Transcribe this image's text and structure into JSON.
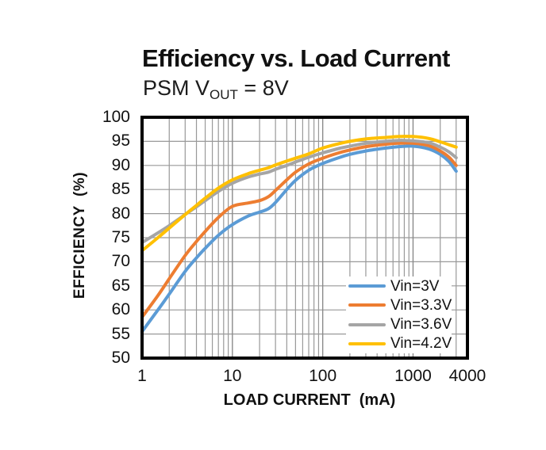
{
  "chart_data": {
    "type": "line",
    "title": "Efficiency vs. Load Current",
    "subtitle": {
      "prefix": "PSM V",
      "sub": "OUT",
      "suffix": " = 8V"
    },
    "xlabel": "LOAD CURRENT  (mA)",
    "ylabel": "EFFICIENCY  (%)",
    "x_scale": "log",
    "xlim": [
      1,
      4000
    ],
    "ylim": [
      50,
      100
    ],
    "x_tick_values": [
      1,
      10,
      100,
      1000,
      4000
    ],
    "x_tick_labels": [
      "1",
      "10",
      "100",
      "1000",
      "4000"
    ],
    "y_tick_values": [
      100,
      95,
      90,
      85,
      80,
      75,
      70,
      65,
      60,
      55,
      50
    ],
    "y_tick_labels": [
      "100",
      "95",
      "90",
      "85",
      "80",
      "75",
      "70",
      "65",
      "60",
      "55",
      "50"
    ],
    "grid": {
      "horizontal_major_step": 5,
      "vertical_log_minor": true,
      "color": "#999999",
      "major_color": "#8a8a8a"
    },
    "frame_color": "#000000",
    "legend_position": "inside-bottom-right",
    "x": [
      1,
      1.5,
      2,
      3,
      4,
      5,
      7,
      10,
      15,
      20,
      25,
      30,
      40,
      50,
      70,
      100,
      150,
      200,
      300,
      500,
      700,
      1000,
      1500,
      2000,
      2500,
      3000
    ],
    "series": [
      {
        "name": "Vin=3V",
        "color": "#5B9BD5",
        "values": [
          55.5,
          60.0,
          63.3,
          68.0,
          70.8,
          72.8,
          75.5,
          77.7,
          79.5,
          80.3,
          81.0,
          82.3,
          85.0,
          86.9,
          89.0,
          90.4,
          91.6,
          92.3,
          93.0,
          93.6,
          93.9,
          94.0,
          93.4,
          92.3,
          90.8,
          88.8
        ]
      },
      {
        "name": "Vin=3.3V",
        "color": "#ED7D31",
        "values": [
          58.5,
          63.0,
          66.5,
          71.3,
          74.2,
          76.3,
          79.2,
          81.5,
          82.2,
          82.7,
          83.5,
          84.8,
          87.0,
          88.6,
          90.3,
          91.5,
          92.6,
          93.2,
          93.9,
          94.4,
          94.6,
          94.6,
          94.1,
          93.0,
          91.7,
          90.0
        ]
      },
      {
        "name": "Vin=3.6V",
        "color": "#A5A5A5",
        "values": [
          74.0,
          76.0,
          77.5,
          79.8,
          81.4,
          82.7,
          84.6,
          86.3,
          87.6,
          88.2,
          88.6,
          89.2,
          90.0,
          90.7,
          91.7,
          92.6,
          93.5,
          94.0,
          94.6,
          95.0,
          95.2,
          95.1,
          94.7,
          93.8,
          92.8,
          91.6
        ]
      },
      {
        "name": "Vin=4.2V",
        "color": "#FFC000",
        "values": [
          72.3,
          75.0,
          77.0,
          79.8,
          81.7,
          83.2,
          85.3,
          87.0,
          88.3,
          89.0,
          89.5,
          90.1,
          90.9,
          91.5,
          92.4,
          93.6,
          94.5,
          95.0,
          95.5,
          95.8,
          96.0,
          96.0,
          95.6,
          94.9,
          94.3,
          93.8
        ]
      }
    ]
  }
}
